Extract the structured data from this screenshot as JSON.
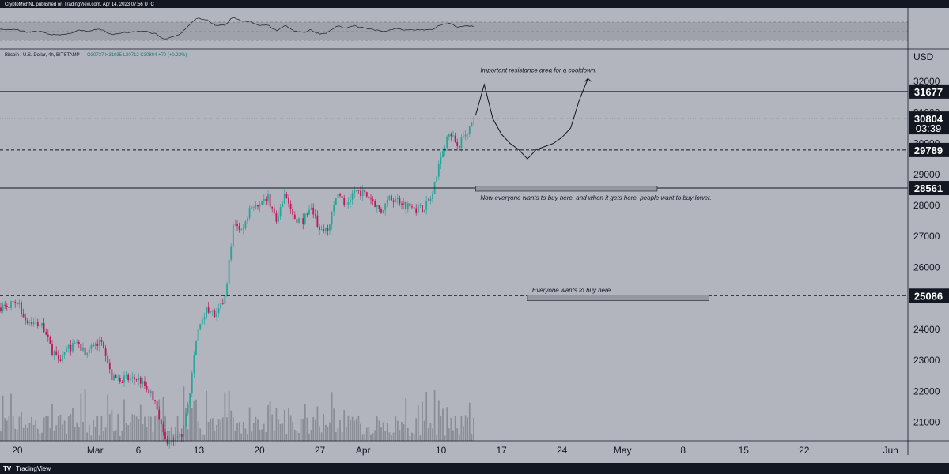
{
  "header": {
    "published_text": "CryptoMichNL published on TradingView.com, Apr 14, 2023 07:56 UTC"
  },
  "symbol_info": {
    "name": "Bitcoin / U.S. Dollar, 4h, BITSTAMP",
    "ohlc": "O30737 H31035 L30712 C30804 +70 (+0.23%)"
  },
  "footer": {
    "brand": "TradingView"
  },
  "colors": {
    "background": "#b2b5be",
    "up_candle": "#26a69a",
    "down_candle": "#c2185b",
    "price_tag": "#131722",
    "zone_fill": "#9598a1",
    "header_bar": "#131722"
  },
  "chart_data": {
    "type": "candlestick",
    "title": "Bitcoin / U.S. Dollar, 4h, BITSTAMP",
    "ylabel": "USD",
    "ylim": [
      20400,
      33000
    ],
    "x_ticks": [
      "20",
      "Mar",
      "6",
      "13",
      "20",
      "27",
      "Apr",
      "10",
      "17",
      "24",
      "May",
      "8",
      "15",
      "22",
      "Jun"
    ],
    "y_ticks": [
      21000,
      22000,
      23000,
      24000,
      25000,
      26000,
      27000,
      28000,
      29000,
      30000,
      31000,
      32000
    ],
    "x_range": [
      "2023-02-18",
      "2023-06-03"
    ],
    "price_path": [
      [
        "2023-02-18",
        24700
      ],
      [
        "2023-02-19",
        24800
      ],
      [
        "2023-02-20",
        24900
      ],
      [
        "2023-02-21",
        24300
      ],
      [
        "2023-02-22",
        24200
      ],
      [
        "2023-02-23",
        24100
      ],
      [
        "2023-02-24",
        23300
      ],
      [
        "2023-02-25",
        23100
      ],
      [
        "2023-02-26",
        23400
      ],
      [
        "2023-02-27",
        23500
      ],
      [
        "2023-02-28",
        23200
      ],
      [
        "2023-03-01",
        23600
      ],
      [
        "2023-03-02",
        23500
      ],
      [
        "2023-03-03",
        22400
      ],
      [
        "2023-03-04",
        22400
      ],
      [
        "2023-03-05",
        22400
      ],
      [
        "2023-03-06",
        22400
      ],
      [
        "2023-03-07",
        22100
      ],
      [
        "2023-03-08",
        21700
      ],
      [
        "2023-03-09",
        20400
      ],
      [
        "2023-03-10",
        20300
      ],
      [
        "2023-03-11",
        20600
      ],
      [
        "2023-03-12",
        22100
      ],
      [
        "2023-03-13",
        24200
      ],
      [
        "2023-03-14",
        24700
      ],
      [
        "2023-03-15",
        24400
      ],
      [
        "2023-03-16",
        25000
      ],
      [
        "2023-03-17",
        27400
      ],
      [
        "2023-03-18",
        27200
      ],
      [
        "2023-03-19",
        28000
      ],
      [
        "2023-03-20",
        27900
      ],
      [
        "2023-03-21",
        28300
      ],
      [
        "2023-03-22",
        27400
      ],
      [
        "2023-03-23",
        28400
      ],
      [
        "2023-03-24",
        27600
      ],
      [
        "2023-03-25",
        27500
      ],
      [
        "2023-03-26",
        27900
      ],
      [
        "2023-03-27",
        27200
      ],
      [
        "2023-03-28",
        27300
      ],
      [
        "2023-03-29",
        28400
      ],
      [
        "2023-03-30",
        28000
      ],
      [
        "2023-03-31",
        28500
      ],
      [
        "2023-04-01",
        28400
      ],
      [
        "2023-04-02",
        28200
      ],
      [
        "2023-04-03",
        27800
      ],
      [
        "2023-04-04",
        28200
      ],
      [
        "2023-04-05",
        28200
      ],
      [
        "2023-04-06",
        28000
      ],
      [
        "2023-04-07",
        27900
      ],
      [
        "2023-04-08",
        27900
      ],
      [
        "2023-04-09",
        28300
      ],
      [
        "2023-04-10",
        29700
      ],
      [
        "2023-04-11",
        30300
      ],
      [
        "2023-04-12",
        29900
      ],
      [
        "2023-04-13",
        30400
      ],
      [
        "2023-04-14",
        30804
      ]
    ],
    "projection_path": [
      [
        "2023-04-14",
        30900
      ],
      [
        "2023-04-15",
        31900
      ],
      [
        "2023-04-16",
        30800
      ],
      [
        "2023-04-17",
        30300
      ],
      [
        "2023-04-18",
        30000
      ],
      [
        "2023-04-19",
        29800
      ],
      [
        "2023-04-20",
        29500
      ],
      [
        "2023-04-21",
        29800
      ],
      [
        "2023-04-22",
        29900
      ],
      [
        "2023-04-23",
        30000
      ],
      [
        "2023-04-24",
        30200
      ],
      [
        "2023-04-25",
        30500
      ],
      [
        "2023-04-26",
        31400
      ],
      [
        "2023-04-27",
        32100
      ]
    ],
    "horizontal_levels": [
      {
        "price": 31677,
        "style": "solid",
        "label": "31677"
      },
      {
        "price": 29789,
        "style": "dashed",
        "label": "29789"
      },
      {
        "price": 28561,
        "style": "solid",
        "label": "28561"
      },
      {
        "price": 25086,
        "style": "dashed",
        "label": "25086"
      }
    ],
    "current_price": {
      "price": 30804,
      "label": "30804",
      "countdown": "03:39"
    },
    "zones": [
      {
        "from": "2023-04-14",
        "to": "2023-05-05",
        "low": 28460,
        "high": 28620
      },
      {
        "from": "2023-04-20",
        "to": "2023-05-11",
        "low": 24930,
        "high": 25110
      }
    ],
    "annotations": [
      {
        "text": "Important resistance area for a cooldown.",
        "date": "2023-04-14",
        "price": 32300
      },
      {
        "text": "Now everyone wants to buy here, and when it gets here, people want to buy lower.",
        "date": "2023-04-14",
        "price": 28180
      },
      {
        "text": "Everyone wants to buy here.",
        "date": "2023-04-20",
        "price": 25200
      }
    ],
    "grid": false
  }
}
